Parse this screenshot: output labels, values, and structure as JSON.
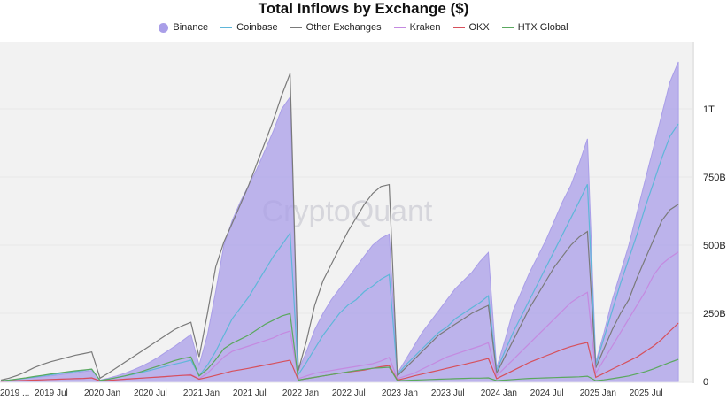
{
  "chart_data": {
    "type": "line",
    "title": "Total Inflows by Exchange ($)",
    "xlabel": "",
    "ylabel": "",
    "x_start": "2019-01",
    "x_step": "month",
    "x_tick_labels": [
      "2019 ...",
      "2019 Jul",
      "2020 Jan",
      "2020 Jul",
      "2021 Jan",
      "2021 Jul",
      "2022 Jan",
      "2022 Jul",
      "2023 Jan",
      "2023 Jul",
      "2024 Jan",
      "2024 Jul",
      "2025 Jan",
      "2025 Jul"
    ],
    "x_tick_months": [
      0,
      6,
      12,
      18,
      24,
      30,
      36,
      42,
      48,
      54,
      60,
      66,
      72,
      78
    ],
    "y_ticks": [
      {
        "v": 0,
        "label": "0"
      },
      {
        "v": 250,
        "label": "250B"
      },
      {
        "v": 500,
        "label": "500B"
      },
      {
        "v": 750,
        "label": "750B"
      },
      {
        "v": 1000,
        "label": "1T"
      }
    ],
    "y_unit": "billion USD",
    "ylim": [
      0,
      1230
    ],
    "axis_side": "right",
    "grid": true,
    "legend_position": "top",
    "watermark": "CryptoQuant",
    "series": [
      {
        "name": "Binance",
        "style": "area",
        "color": "#a99ee8",
        "values": [
          2,
          5,
          8,
          11,
          14,
          17,
          20,
          24,
          28,
          32,
          36,
          40,
          5,
          12,
          20,
          30,
          42,
          55,
          70,
          88,
          108,
          128,
          150,
          172,
          60,
          170,
          330,
          500,
          590,
          660,
          720,
          780,
          850,
          920,
          1000,
          1043,
          40,
          110,
          190,
          250,
          300,
          340,
          380,
          420,
          460,
          500,
          525,
          541,
          30,
          80,
          130,
          180,
          220,
          260,
          300,
          340,
          370,
          400,
          440,
          473,
          50,
          150,
          260,
          330,
          400,
          460,
          520,
          590,
          660,
          720,
          800,
          890,
          70,
          180,
          300,
          400,
          500,
          620,
          740,
          860,
          980,
          1100,
          1172
        ]
      },
      {
        "name": "Coinbase",
        "style": "line",
        "color": "#5fb6d9",
        "values": [
          2,
          5,
          8,
          12,
          16,
          20,
          24,
          28,
          32,
          36,
          40,
          45,
          4,
          8,
          14,
          20,
          26,
          33,
          40,
          48,
          56,
          63,
          70,
          78,
          20,
          60,
          110,
          170,
          230,
          270,
          310,
          360,
          410,
          460,
          500,
          544,
          25,
          70,
          120,
          170,
          210,
          250,
          280,
          300,
          330,
          350,
          375,
          392,
          25,
          60,
          90,
          120,
          150,
          180,
          200,
          230,
          250,
          270,
          290,
          314,
          40,
          110,
          180,
          240,
          300,
          360,
          420,
          480,
          540,
          600,
          660,
          723,
          60,
          160,
          260,
          360,
          450,
          540,
          640,
          730,
          820,
          900,
          945
        ]
      },
      {
        "name": "Other Exchanges",
        "style": "line",
        "color": "#7a7a7a",
        "values": [
          5,
          12,
          22,
          35,
          50,
          62,
          72,
          80,
          88,
          96,
          102,
          108,
          12,
          30,
          50,
          70,
          90,
          110,
          130,
          150,
          170,
          190,
          205,
          217,
          90,
          250,
          420,
          512,
          580,
          650,
          720,
          800,
          880,
          960,
          1050,
          1130,
          40,
          150,
          280,
          370,
          430,
          490,
          550,
          600,
          650,
          690,
          715,
          722,
          20,
          50,
          80,
          110,
          140,
          170,
          190,
          210,
          230,
          250,
          265,
          279,
          30,
          90,
          150,
          210,
          270,
          320,
          370,
          420,
          460,
          500,
          530,
          550,
          50,
          120,
          190,
          250,
          300,
          380,
          450,
          520,
          590,
          630,
          650
        ]
      },
      {
        "name": "Kraken",
        "style": "line",
        "color": "#c48ae0",
        "values": [
          1,
          2,
          3,
          4,
          5,
          6,
          7,
          8,
          9,
          10,
          11,
          12,
          2,
          4,
          6,
          8,
          10,
          12,
          14,
          16,
          18,
          20,
          22,
          25,
          10,
          30,
          60,
          90,
          110,
          120,
          130,
          140,
          150,
          160,
          175,
          185,
          10,
          20,
          30,
          35,
          40,
          45,
          50,
          55,
          60,
          65,
          75,
          88,
          10,
          20,
          30,
          45,
          60,
          75,
          90,
          100,
          110,
          120,
          130,
          142,
          20,
          50,
          80,
          110,
          140,
          170,
          200,
          230,
          260,
          290,
          310,
          327,
          30,
          80,
          130,
          180,
          230,
          280,
          330,
          390,
          430,
          455,
          475
        ]
      },
      {
        "name": "OKX",
        "style": "line",
        "color": "#d6505c",
        "values": [
          1,
          2,
          3,
          4,
          5,
          6,
          7,
          8,
          9,
          10,
          11,
          13,
          2,
          4,
          6,
          8,
          10,
          12,
          14,
          16,
          18,
          20,
          22,
          23,
          8,
          15,
          22,
          30,
          38,
          43,
          48,
          54,
          60,
          66,
          72,
          78,
          5,
          10,
          15,
          20,
          25,
          30,
          34,
          38,
          42,
          48,
          54,
          58,
          5,
          12,
          20,
          27,
          34,
          41,
          48,
          55,
          62,
          69,
          76,
          84,
          10,
          25,
          40,
          55,
          70,
          82,
          94,
          106,
          118,
          128,
          136,
          143,
          15,
          30,
          45,
          60,
          75,
          90,
          110,
          130,
          155,
          185,
          214
        ]
      },
      {
        "name": "HTX Global",
        "style": "line",
        "color": "#5aa85e",
        "values": [
          2,
          5,
          9,
          13,
          18,
          22,
          27,
          31,
          35,
          39,
          42,
          45,
          4,
          8,
          14,
          20,
          28,
          36,
          46,
          56,
          66,
          76,
          84,
          90,
          20,
          45,
          80,
          120,
          140,
          155,
          170,
          190,
          210,
          225,
          240,
          249,
          5,
          10,
          15,
          20,
          25,
          30,
          35,
          40,
          44,
          48,
          50,
          52,
          3,
          4,
          5,
          6,
          7,
          8,
          9,
          10,
          11,
          12,
          12,
          13,
          3,
          5,
          7,
          9,
          11,
          12,
          13,
          14,
          15,
          16,
          17,
          19,
          3,
          6,
          10,
          15,
          20,
          28,
          36,
          46,
          58,
          70,
          81
        ]
      }
    ]
  }
}
